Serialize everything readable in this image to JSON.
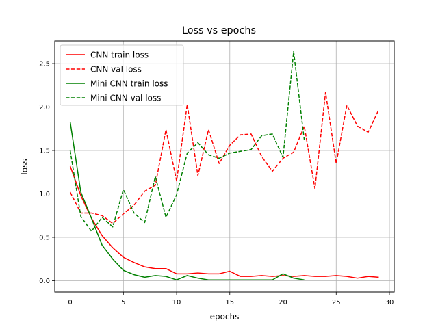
{
  "chart_data": {
    "type": "line",
    "title": "Loss vs epochs",
    "xlabel": "epochs",
    "ylabel": "loss",
    "xlim": [
      -1.45,
      30.45
    ],
    "ylim": [
      -0.13,
      2.76
    ],
    "xticks": [
      0,
      5,
      10,
      15,
      20,
      25,
      30
    ],
    "yticks": [
      0.0,
      0.5,
      1.0,
      1.5,
      2.0,
      2.5
    ],
    "xtick_labels": [
      "0",
      "5",
      "10",
      "15",
      "20",
      "25",
      "30"
    ],
    "ytick_labels": [
      "0.0",
      "0.5",
      "1.0",
      "1.5",
      "2.0",
      "2.5"
    ],
    "grid": true,
    "legend_position": "upper left",
    "series": [
      {
        "name": "CNN train loss",
        "color": "#ff0000",
        "style": "solid",
        "x": [
          0,
          1,
          2,
          3,
          4,
          5,
          6,
          7,
          8,
          9,
          10,
          11,
          12,
          13,
          14,
          15,
          16,
          17,
          18,
          19,
          20,
          21,
          22,
          23,
          24,
          25,
          26,
          27,
          28,
          29
        ],
        "values": [
          1.32,
          0.98,
          0.72,
          0.52,
          0.38,
          0.27,
          0.21,
          0.16,
          0.14,
          0.14,
          0.08,
          0.08,
          0.09,
          0.08,
          0.08,
          0.11,
          0.05,
          0.05,
          0.06,
          0.05,
          0.06,
          0.05,
          0.06,
          0.05,
          0.05,
          0.06,
          0.05,
          0.03,
          0.05,
          0.04
        ]
      },
      {
        "name": "CNN val loss",
        "color": "#ff0000",
        "style": "dashed",
        "x": [
          0,
          1,
          2,
          3,
          4,
          5,
          6,
          7,
          8,
          9,
          10,
          11,
          12,
          13,
          14,
          15,
          16,
          17,
          18,
          19,
          20,
          21,
          22,
          23,
          24,
          25,
          26,
          27,
          28,
          29
        ],
        "values": [
          1.02,
          0.78,
          0.78,
          0.75,
          0.66,
          0.77,
          0.87,
          1.03,
          1.1,
          1.74,
          1.15,
          2.03,
          1.21,
          1.74,
          1.35,
          1.56,
          1.68,
          1.69,
          1.43,
          1.26,
          1.41,
          1.48,
          1.78,
          1.06,
          2.17,
          1.35,
          2.02,
          1.78,
          1.71,
          1.97
        ]
      },
      {
        "name": "Mini CNN train loss",
        "color": "#008000",
        "style": "solid",
        "x": [
          0,
          1,
          2,
          3,
          4,
          5,
          6,
          7,
          8,
          9,
          10,
          11,
          12,
          13,
          14,
          15,
          16,
          17,
          18,
          19,
          20,
          21,
          22
        ],
        "values": [
          1.83,
          1.02,
          0.72,
          0.41,
          0.25,
          0.12,
          0.07,
          0.04,
          0.06,
          0.05,
          0.01,
          0.06,
          0.03,
          0.01,
          0.01,
          0.01,
          0.01,
          0.01,
          0.01,
          0.01,
          0.08,
          0.03,
          0.01
        ]
      },
      {
        "name": "Mini CNN val loss",
        "color": "#008000",
        "style": "dashed",
        "x": [
          0,
          1,
          2,
          3,
          4,
          5,
          6,
          7,
          8,
          9,
          10,
          11,
          12,
          13,
          14,
          15,
          16,
          17,
          18,
          19,
          20,
          21,
          22
        ],
        "values": [
          1.5,
          0.74,
          0.57,
          0.73,
          0.62,
          1.05,
          0.78,
          0.67,
          1.2,
          0.73,
          0.99,
          1.47,
          1.59,
          1.45,
          1.41,
          1.47,
          1.49,
          1.51,
          1.67,
          1.69,
          1.42,
          2.64,
          1.62
        ]
      }
    ]
  }
}
